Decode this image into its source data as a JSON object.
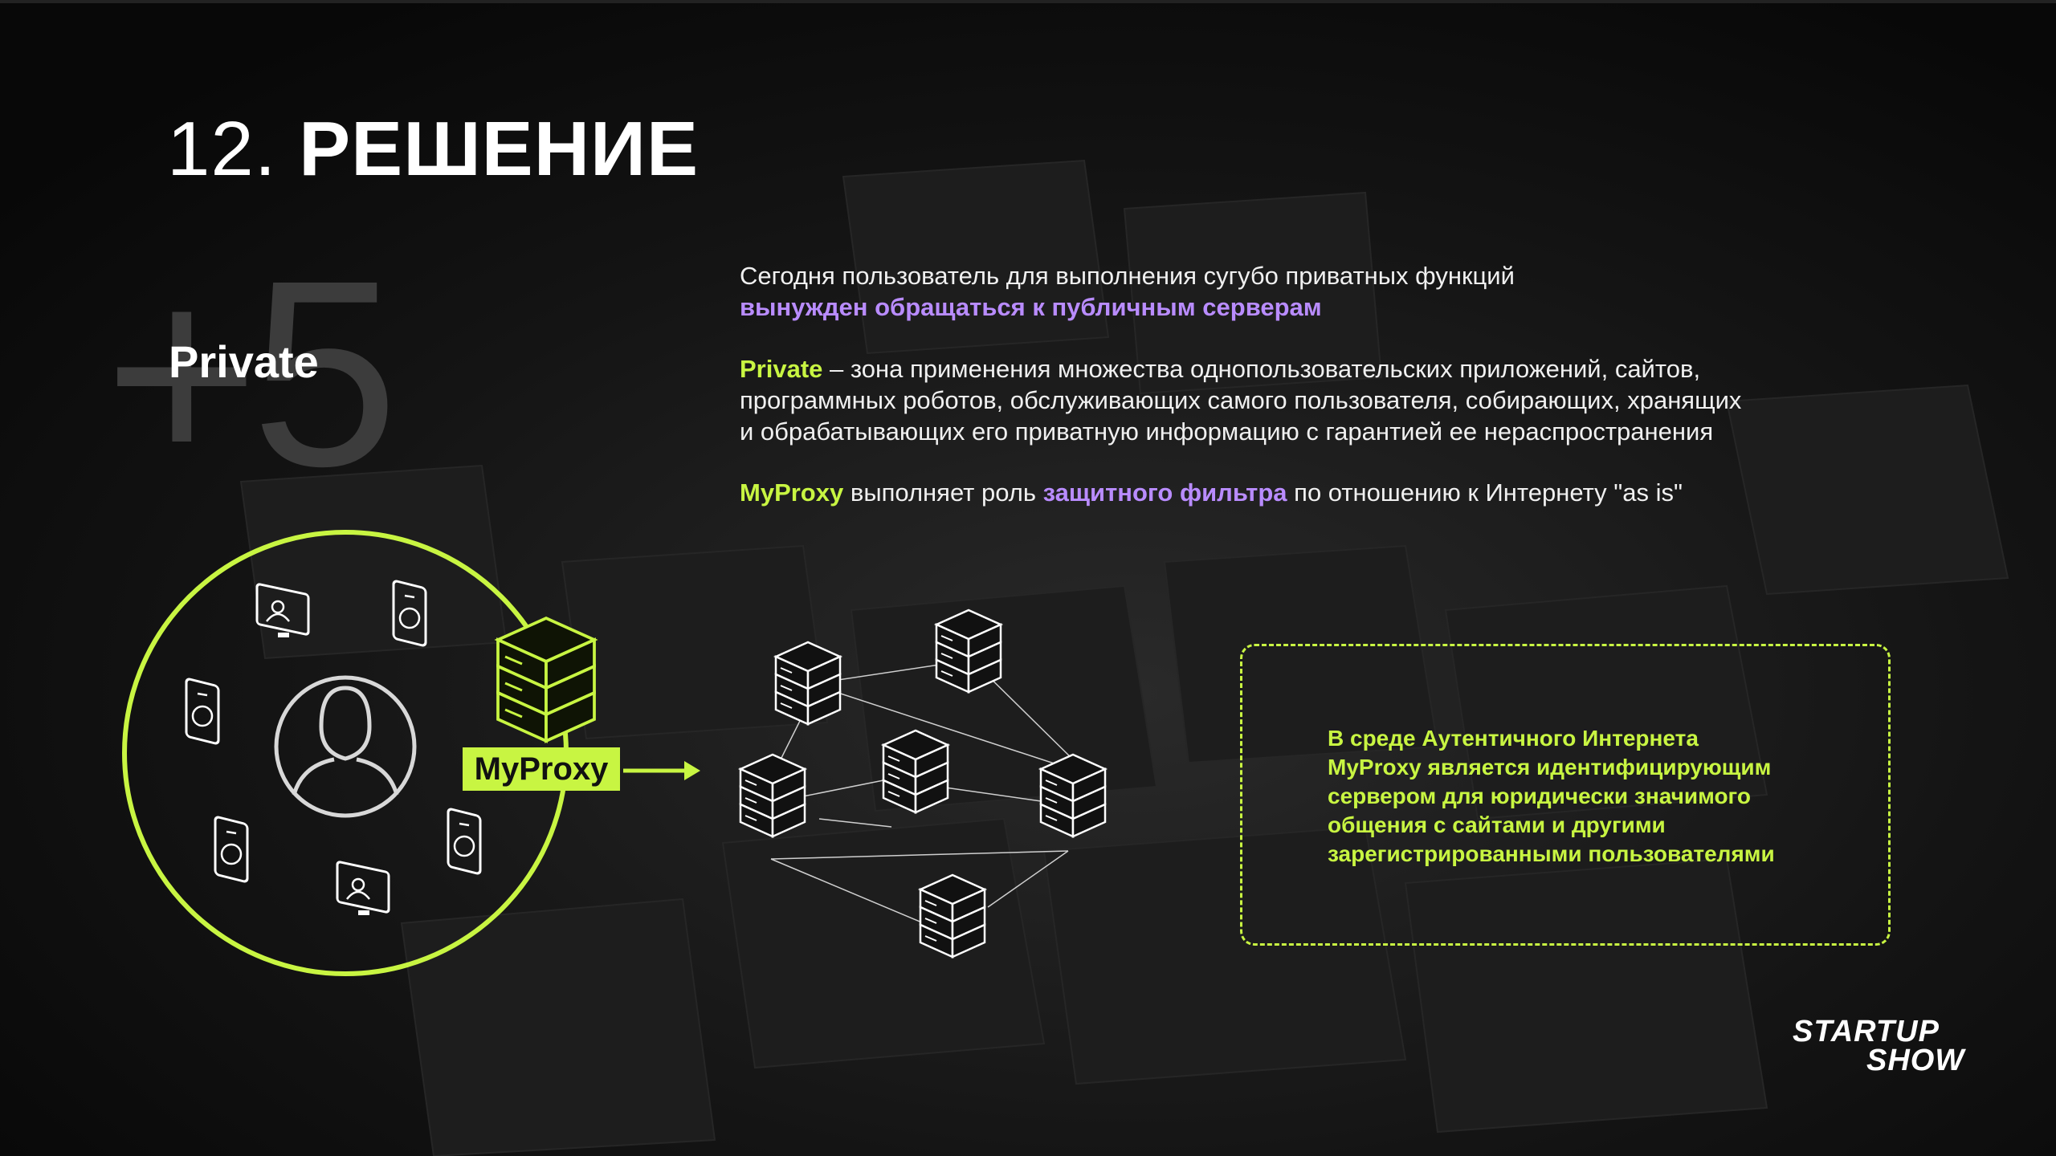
{
  "slide": {
    "title_number": "12.",
    "title_word": "РЕШЕНИЕ",
    "big_number": "+5",
    "section_label": "Private"
  },
  "text": {
    "p1_line1": "Сегодня пользователь для выполнения сугубо приватных функций",
    "p1_line2": "вынужден обращаться к публичным серверам",
    "p2_key": "Private",
    "p2_line1_rest": " – зона применения множества однопользовательских приложений, сайтов,",
    "p2_line2": "программных роботов, обслуживающих самого пользователя, собирающих, хранящих",
    "p2_line3": "и обрабатывающих его приватную информацию с гарантией ее нераспространения",
    "p3_key": "MyProxy",
    "p3_mid": " выполняет роль ",
    "p3_highlight": "защитного фильтра",
    "p3_end": " по отношению к Интернету \"as is\""
  },
  "diagram": {
    "proxy_label": "MyProxy",
    "user_icon": "user-silhouette-icon",
    "device_icon": "device-icon",
    "server_icon": "server-rack-icon"
  },
  "info_box": {
    "lines": [
      "В среде Аутентичного Интернета",
      "MyProxy является идентифицирующим",
      "сервером для юридически значимого",
      "общения с сайтами и другими",
      "зарегистрированными пользователями"
    ]
  },
  "logo": {
    "line1": "STARTUP",
    "line2": "SHOW"
  },
  "colors": {
    "accent_green": "#c8f542",
    "accent_purple": "#b98cff",
    "background": "#0b0b0b"
  }
}
